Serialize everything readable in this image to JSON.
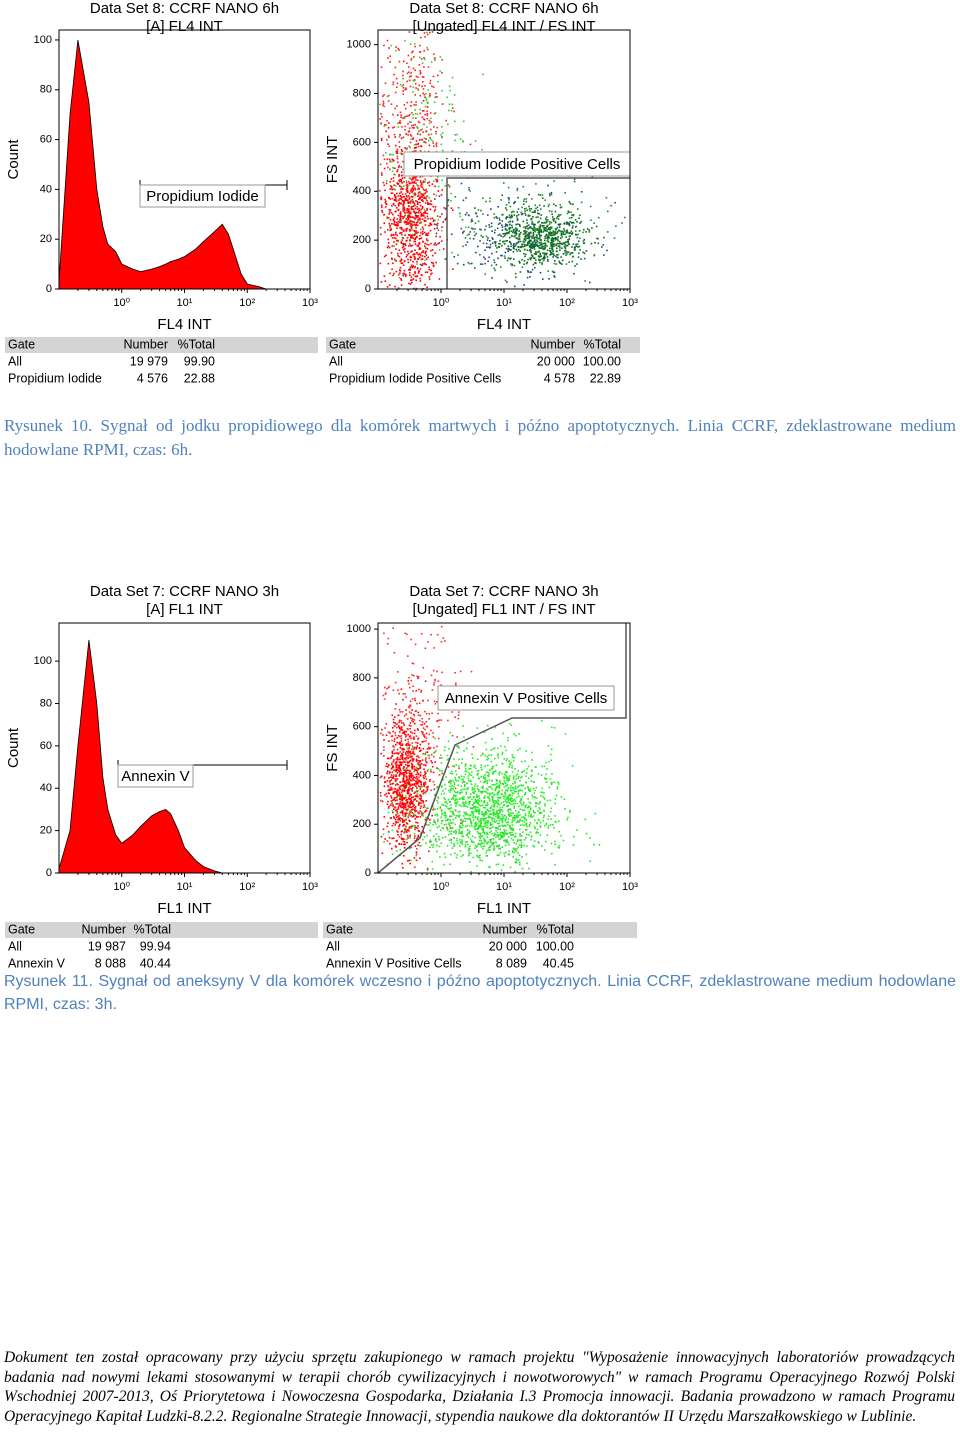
{
  "figures": [
    {
      "plots": [
        {
          "type": "histogram",
          "title": [
            "Data Set 8: CCRF NANO 6h",
            "[A] FL4 INT"
          ],
          "xlabel": "FL4 INT",
          "ylabel": "Count",
          "xscale": "log",
          "xlim": [
            0.1,
            1000
          ],
          "xticks": [
            {
              "value": 1,
              "label": "10⁰"
            },
            {
              "value": 10,
              "label": "10¹"
            },
            {
              "value": 100,
              "label": "10²"
            },
            {
              "value": 1000,
              "label": "10³"
            }
          ],
          "ylim": [
            0,
            104
          ],
          "yticks": [
            0,
            20,
            40,
            60,
            80,
            100
          ],
          "color": "#ff0000",
          "x": [
            0.1,
            0.15,
            0.2,
            0.3,
            0.4,
            0.5,
            0.6,
            0.8,
            1,
            1.5,
            2,
            3,
            4,
            5,
            6,
            8,
            10,
            15,
            20,
            30,
            40,
            50,
            60,
            80,
            100,
            150,
            200,
            300
          ],
          "counts": [
            3,
            70,
            100,
            75,
            40,
            25,
            18,
            15,
            10,
            8,
            7,
            8,
            9,
            10,
            11,
            12,
            13,
            16,
            19,
            23,
            26,
            22,
            16,
            6,
            2,
            1,
            0,
            0
          ],
          "gate": "Propidium Iodide"
        },
        {
          "type": "scatter",
          "title": [
            "Data Set 8: CCRF NANO 6h",
            "[Ungated] FL4 INT / FS INT"
          ],
          "xlabel": "FL4 INT",
          "ylabel": "FS INT",
          "xscale": "log",
          "xlim": [
            0.1,
            1000
          ],
          "xticks": [
            {
              "value": 1,
              "label": "10⁰"
            },
            {
              "value": 10,
              "label": "10¹"
            },
            {
              "value": 100,
              "label": "10²"
            },
            {
              "value": 1000,
              "label": "10³"
            }
          ],
          "ylim": [
            0,
            1060
          ],
          "yticks": [
            0,
            200,
            400,
            600,
            800,
            1000
          ],
          "gate": "Propidium Iodide Positive Cells"
        }
      ],
      "tables": [
        {
          "header": [
            "Gate",
            "Number",
            "%Total"
          ],
          "rows": [
            [
              "All",
              "19 979",
              "99.90"
            ],
            [
              "Propidium Iodide",
              "4 576",
              "22.88"
            ]
          ]
        },
        {
          "header": [
            "Gate",
            "Number",
            "%Total"
          ],
          "rows": [
            [
              "All",
              "20 000",
              "100.00"
            ],
            [
              "Propidium Iodide Positive Cells",
              "4 578",
              "22.89"
            ]
          ]
        }
      ],
      "caption": "Rysunek 10. Sygnał od jodku propidiowego dla komórek martwych i późno apoptotycznych. Linia CCRF, zdeklastrowane medium hodowlane RPMI, czas: 6h."
    },
    {
      "plots": [
        {
          "type": "histogram",
          "title": [
            "Data Set 7: CCRF NANO 3h",
            "[A] FL1 INT"
          ],
          "xlabel": "FL1 INT",
          "ylabel": "Count",
          "xscale": "log",
          "xlim": [
            0.1,
            1000
          ],
          "xticks": [
            {
              "value": 1,
              "label": "10⁰"
            },
            {
              "value": 10,
              "label": "10¹"
            },
            {
              "value": 100,
              "label": "10²"
            },
            {
              "value": 1000,
              "label": "10³"
            }
          ],
          "ylim": [
            0,
            118
          ],
          "yticks": [
            0,
            20,
            40,
            60,
            80,
            100
          ],
          "color": "#ff0000",
          "x": [
            0.1,
            0.15,
            0.2,
            0.3,
            0.4,
            0.5,
            0.6,
            0.8,
            1,
            1.5,
            2,
            3,
            4,
            5,
            6,
            8,
            10,
            15,
            20,
            30,
            40,
            50,
            60,
            80,
            100,
            150,
            200,
            300
          ],
          "counts": [
            2,
            20,
            60,
            110,
            80,
            45,
            30,
            18,
            14,
            18,
            22,
            27,
            29,
            30,
            28,
            20,
            12,
            6,
            3,
            1,
            0,
            0,
            0,
            0,
            0,
            0,
            0,
            0
          ],
          "gate": "Annexin V"
        },
        {
          "type": "scatter",
          "title": [
            "Data Set 7: CCRF NANO 3h",
            "[Ungated] FL1 INT / FS INT"
          ],
          "xlabel": "FL1 INT",
          "ylabel": "FS INT",
          "xscale": "log",
          "xlim": [
            0.1,
            1000
          ],
          "xticks": [
            {
              "value": 1,
              "label": "10⁰"
            },
            {
              "value": 10,
              "label": "10¹"
            },
            {
              "value": 100,
              "label": "10²"
            },
            {
              "value": 1000,
              "label": "10³"
            }
          ],
          "ylim": [
            0,
            1025
          ],
          "yticks": [
            0,
            200,
            400,
            600,
            800,
            1000
          ],
          "gate": "Annexin V Positive Cells"
        }
      ],
      "tables": [
        {
          "header": [
            "Gate",
            "Number",
            "%Total"
          ],
          "rows": [
            [
              "All",
              "19 987",
              "99.94"
            ],
            [
              "Annexin V",
              "8 088",
              "40.44"
            ]
          ]
        },
        {
          "header": [
            "Gate",
            "Number",
            "%Total"
          ],
          "rows": [
            [
              "All",
              "20 000",
              "100.00"
            ],
            [
              "Annexin V Positive Cells",
              "8 089",
              "40.45"
            ]
          ]
        }
      ],
      "caption": "Rysunek 11. Sygnał od aneksyny V dla komórek wczesno i późno apoptotycznych. Linia CCRF, zdeklastrowane medium hodowlane RPMI, czas: 3h."
    }
  ],
  "footer": "Dokument ten został opracowany przy użyciu sprzętu zakupionego w ramach projektu \"Wyposażenie innowacyjnych laboratoriów prowadzących badania nad nowymi lekami stosowanymi w terapii chorób cywilizacyjnych i nowotworowych\" w ramach Programu Operacyjnego Rozwój Polski Wschodniej 2007-2013, Oś Priorytetowa i Nowoczesna Gospodarka, Działania I.3 Promocja innowacji. Badania prowadzono w ramach Programu Operacyjnego Kapitał Ludzki-8.2.2. Regionalne Strategie Innowacji, stypendia naukowe dla doktorantów II Urzędu Marszałkowskiego w Lublinie."
}
